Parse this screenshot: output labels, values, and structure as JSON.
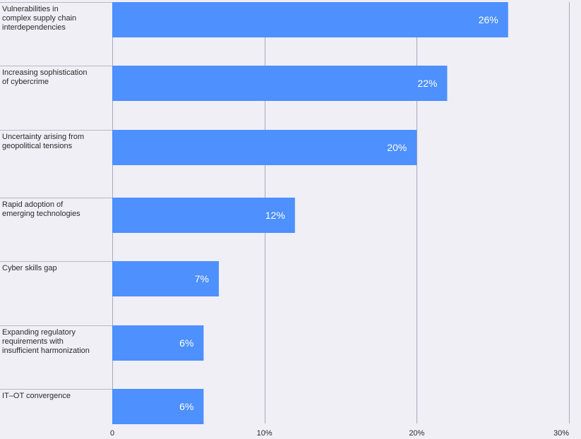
{
  "chart_data": {
    "type": "bar",
    "orientation": "horizontal",
    "categories": [
      [
        "Vulnerabilities in",
        "complex supply chain",
        "interdependencies"
      ],
      [
        "Increasing sophistication",
        "of cybercrime"
      ],
      [
        "Uncertainty arising from",
        "geopolitical tensions"
      ],
      [
        "Rapid adoption of",
        "emerging technologies"
      ],
      [
        "Cyber skills gap"
      ],
      [
        "Expanding regulatory",
        "requirements with",
        "insufficient harmonization"
      ],
      [
        "IT–OT convergence"
      ]
    ],
    "values": [
      26,
      22,
      20,
      12,
      7,
      6,
      6
    ],
    "value_labels": [
      "26%",
      "22%",
      "20%",
      "12%",
      "7%",
      "6%",
      "6%"
    ],
    "xlim": [
      0,
      30
    ],
    "x_ticks": [
      0,
      10,
      20,
      30
    ],
    "x_tick_labels": [
      "0",
      "10%",
      "20%",
      "30%"
    ],
    "grid": true,
    "title": "",
    "xlabel": "",
    "ylabel": ""
  },
  "colors": {
    "bar": "#4d90fe",
    "grid": "#a9a9b8",
    "separator": "#b9b9c6",
    "background": "#f0eff6",
    "value_text": "#ffffff",
    "label_text": "#2a2a2a"
  }
}
